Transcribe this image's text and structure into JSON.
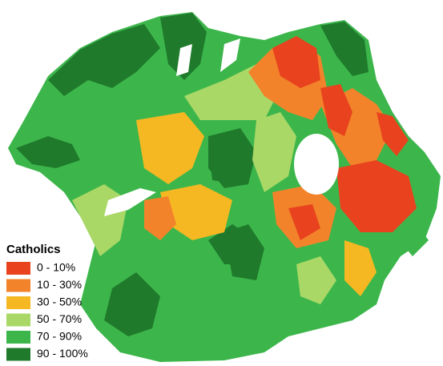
{
  "legend": {
    "title": "Catholics",
    "items": [
      {
        "label": "0 - 10%",
        "color": "#e8431e"
      },
      {
        "label": "10 - 30%",
        "color": "#f2832a"
      },
      {
        "label": "30 - 50%",
        "color": "#f6b822"
      },
      {
        "label": "50 - 70%",
        "color": "#a9d867"
      },
      {
        "label": "70 - 90%",
        "color": "#3cb64b"
      },
      {
        "label": "90 - 100%",
        "color": "#1f7a2c"
      }
    ]
  }
}
